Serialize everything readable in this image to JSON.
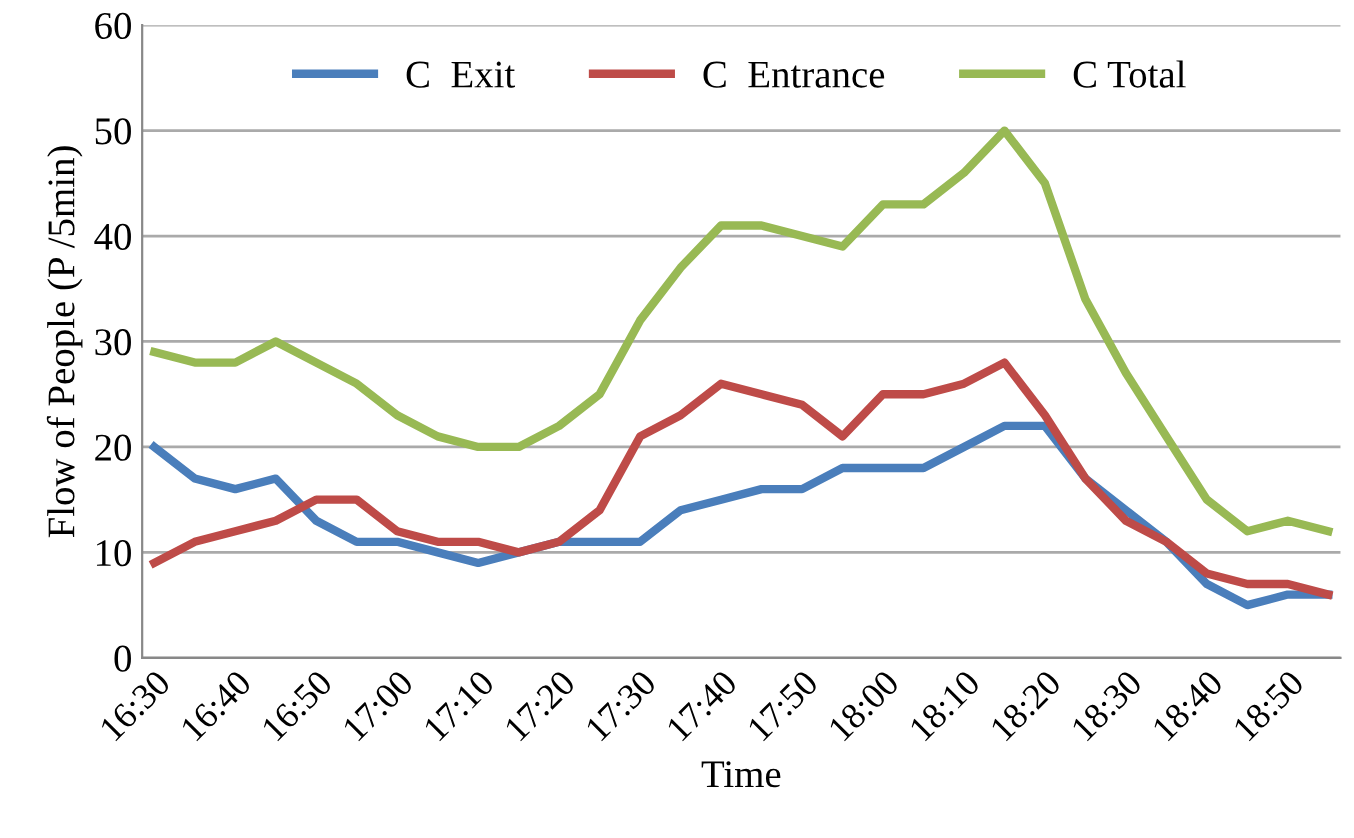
{
  "chart_data": {
    "type": "line",
    "xlabel": "Time",
    "ylabel": "Flow of People (P /5min)",
    "categories": [
      "16:30",
      null,
      "16:40",
      null,
      "16:50",
      null,
      "17:00",
      null,
      "17:10",
      null,
      "17:20",
      null,
      "17:30",
      null,
      "17:40",
      null,
      "17:50",
      null,
      "18:00",
      null,
      "18:10",
      null,
      "18:20",
      null,
      "18:30",
      null,
      "18:40",
      null,
      "18:50",
      null
    ],
    "series": [
      {
        "name": "C  Exit",
        "color": "#4a7ebb",
        "values": [
          20,
          17,
          16,
          17,
          13,
          11,
          11,
          10,
          9,
          10,
          11,
          11,
          11,
          14,
          15,
          16,
          16,
          18,
          18,
          18,
          20,
          22,
          22,
          17,
          14,
          11,
          7,
          5,
          6,
          6
        ]
      },
      {
        "name": "C  Entrance",
        "color": "#be4b48",
        "values": [
          9,
          11,
          12,
          13,
          15,
          15,
          12,
          11,
          11,
          10,
          11,
          14,
          21,
          23,
          26,
          25,
          24,
          21,
          25,
          25,
          26,
          28,
          23,
          17,
          13,
          11,
          8,
          7,
          7,
          6
        ]
      },
      {
        "name": "C Total",
        "color": "#98b954",
        "values": [
          29,
          28,
          28,
          30,
          28,
          26,
          23,
          21,
          20,
          20,
          22,
          25,
          32,
          37,
          41,
          41,
          40,
          39,
          43,
          43,
          46,
          50,
          45,
          34,
          27,
          21,
          15,
          12,
          13,
          12
        ]
      }
    ],
    "ylim": [
      0,
      60
    ],
    "yticks": [
      0,
      10,
      20,
      30,
      40,
      50,
      60
    ],
    "grid": "y",
    "legend": "top",
    "marker": "none",
    "line_style": "solid"
  }
}
